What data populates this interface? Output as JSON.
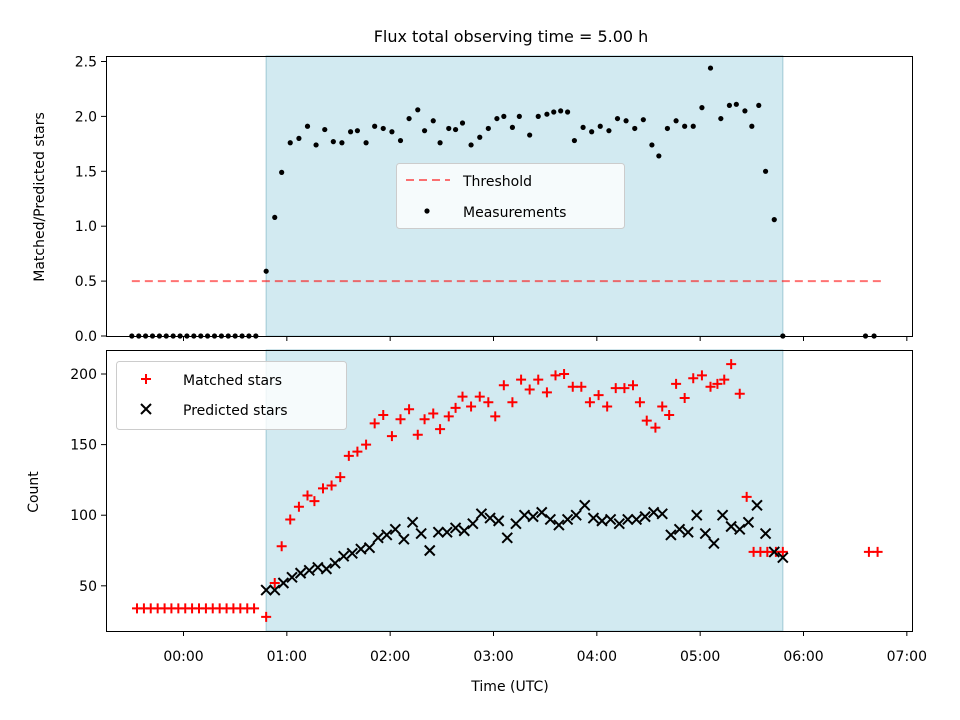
{
  "figure_title": "Flux total observing time = 5.00 h",
  "colors": {
    "observing_span": "#add8e6",
    "threshold": "#ff0000",
    "measurements": "#000000",
    "matched": "#ff0000",
    "predicted": "#000000"
  },
  "chart_data": [
    {
      "type": "scatter",
      "panel": "top",
      "ylabel": "Matched/Predicted stars",
      "xlim_hours": [
        -0.75,
        7.05
      ],
      "ylim": [
        0,
        2.55
      ],
      "yticks": [
        0.0,
        0.5,
        1.0,
        1.5,
        2.0,
        2.5
      ],
      "ytick_labels": [
        "0.0",
        "0.5",
        "1.0",
        "1.5",
        "2.0",
        "2.5"
      ],
      "observing_span_hours": [
        0.8,
        5.8
      ],
      "legend": {
        "position": "center",
        "entries": [
          "Threshold",
          "Measurements"
        ]
      },
      "threshold": {
        "name": "Threshold",
        "value": 0.5,
        "x_range_hours": [
          -0.5,
          6.75
        ]
      },
      "series": [
        {
          "name": "Measurements",
          "x_hours": [
            -0.5,
            -0.433,
            -0.367,
            -0.3,
            -0.233,
            -0.167,
            -0.1,
            -0.033,
            0.033,
            0.1,
            0.167,
            0.233,
            0.3,
            0.367,
            0.433,
            0.5,
            0.567,
            0.633,
            0.7,
            0.8,
            0.883,
            0.95,
            1.033,
            1.117,
            1.2,
            1.283,
            1.367,
            1.45,
            1.533,
            1.617,
            1.683,
            1.767,
            1.85,
            1.933,
            2.017,
            2.1,
            2.183,
            2.267,
            2.333,
            2.417,
            2.483,
            2.567,
            2.633,
            2.7,
            2.783,
            2.867,
            2.95,
            3.033,
            3.1,
            3.183,
            3.25,
            3.35,
            3.433,
            3.517,
            3.583,
            3.65,
            3.717,
            3.783,
            3.867,
            3.95,
            4.033,
            4.117,
            4.2,
            4.283,
            4.367,
            4.45,
            4.533,
            4.6,
            4.683,
            4.767,
            4.85,
            4.933,
            5.017,
            5.1,
            5.2,
            5.283,
            5.35,
            5.433,
            5.5,
            5.567,
            5.633,
            5.717,
            5.8,
            6.6,
            6.683
          ],
          "y": [
            0,
            0,
            0,
            0,
            0,
            0,
            0,
            0,
            0,
            0,
            0,
            0,
            0,
            0,
            0,
            0,
            0,
            0,
            0,
            0.59,
            1.08,
            1.49,
            1.76,
            1.8,
            1.91,
            1.74,
            1.88,
            1.77,
            1.76,
            1.86,
            1.87,
            1.76,
            1.91,
            1.89,
            1.86,
            1.78,
            1.98,
            2.06,
            1.87,
            1.96,
            1.76,
            1.89,
            1.88,
            1.94,
            1.74,
            1.81,
            1.89,
            1.98,
            2.0,
            1.9,
            2.0,
            1.83,
            2.0,
            2.02,
            2.04,
            2.05,
            2.04,
            1.78,
            1.9,
            1.86,
            1.91,
            1.87,
            1.98,
            1.96,
            1.89,
            1.97,
            1.74,
            1.64,
            1.89,
            1.96,
            1.91,
            1.91,
            2.08,
            2.44,
            1.98,
            2.1,
            2.11,
            2.05,
            1.91,
            2.1,
            1.5,
            1.06,
            0,
            0,
            0
          ]
        }
      ]
    },
    {
      "type": "scatter",
      "panel": "bottom",
      "xlabel": "Time (UTC)",
      "ylabel": "Count",
      "xlim_hours": [
        -0.75,
        7.05
      ],
      "ylim": [
        18,
        217
      ],
      "yticks": [
        50,
        100,
        150,
        200
      ],
      "ytick_labels": [
        "50",
        "100",
        "150",
        "200"
      ],
      "xticks_hours": [
        0,
        1,
        2,
        3,
        4,
        5,
        6,
        7
      ],
      "xtick_labels": [
        "00:00",
        "01:00",
        "02:00",
        "03:00",
        "04:00",
        "05:00",
        "06:00",
        "07:00"
      ],
      "observing_span_hours": [
        0.8,
        5.8
      ],
      "legend": {
        "position": "upper left",
        "entries": [
          "Matched stars",
          "Predicted stars"
        ]
      },
      "series": [
        {
          "name": "Matched stars",
          "marker": "+",
          "x_hours": [
            -0.45,
            -0.383,
            -0.317,
            -0.25,
            -0.183,
            -0.117,
            -0.05,
            0.017,
            0.083,
            0.15,
            0.217,
            0.283,
            0.35,
            0.417,
            0.483,
            0.55,
            0.617,
            0.683,
            0.8,
            0.883,
            0.95,
            1.033,
            1.117,
            1.2,
            1.267,
            1.35,
            1.433,
            1.517,
            1.6,
            1.683,
            1.767,
            1.85,
            1.933,
            2.017,
            2.1,
            2.183,
            2.267,
            2.333,
            2.417,
            2.483,
            2.567,
            2.633,
            2.7,
            2.783,
            2.867,
            2.95,
            3.017,
            3.1,
            3.183,
            3.267,
            3.35,
            3.433,
            3.517,
            3.6,
            3.683,
            3.767,
            3.85,
            3.933,
            4.017,
            4.1,
            4.183,
            4.267,
            4.35,
            4.417,
            4.483,
            4.567,
            4.633,
            4.7,
            4.767,
            4.85,
            4.933,
            5.017,
            5.1,
            5.167,
            5.233,
            5.3,
            5.383,
            5.45,
            5.517,
            5.583,
            5.65,
            5.733,
            5.8,
            6.633,
            6.717
          ],
          "y": [
            34,
            34,
            34,
            34,
            34,
            34,
            34,
            34,
            34,
            34,
            34,
            34,
            34,
            34,
            34,
            34,
            34,
            34,
            28,
            52,
            78,
            97,
            106,
            114,
            110,
            119,
            121,
            127,
            142,
            145,
            150,
            165,
            171,
            156,
            168,
            175,
            157,
            168,
            172,
            161,
            170,
            176,
            184,
            177,
            184,
            180,
            170,
            192,
            180,
            196,
            189,
            196,
            187,
            199,
            200,
            191,
            191,
            180,
            185,
            177,
            190,
            190,
            192,
            180,
            167,
            162,
            177,
            171,
            193,
            183,
            197,
            199,
            191,
            193,
            196,
            207,
            186,
            113,
            74,
            74,
            74,
            74,
            74,
            74,
            74
          ],
          "y_note": ""
        },
        {
          "name": "Predicted stars",
          "marker": "x",
          "x_hours": [
            0.8,
            0.883,
            0.967,
            1.05,
            1.133,
            1.217,
            1.3,
            1.383,
            1.467,
            1.55,
            1.633,
            1.717,
            1.8,
            1.883,
            1.967,
            2.05,
            2.133,
            2.217,
            2.3,
            2.383,
            2.467,
            2.55,
            2.633,
            2.717,
            2.8,
            2.883,
            2.967,
            3.05,
            3.133,
            3.217,
            3.3,
            3.383,
            3.467,
            3.55,
            3.633,
            3.717,
            3.8,
            3.883,
            3.967,
            4.05,
            4.133,
            4.217,
            4.3,
            4.383,
            4.467,
            4.55,
            4.633,
            4.717,
            4.8,
            4.883,
            4.967,
            5.05,
            5.133,
            5.217,
            5.3,
            5.383,
            5.467,
            5.55,
            5.633,
            5.717,
            5.8
          ],
          "y": [
            47,
            47,
            52,
            56,
            59,
            61,
            63,
            62,
            66,
            71,
            73,
            76,
            77,
            84,
            86,
            90,
            83,
            95,
            87,
            75,
            88,
            88,
            91,
            89,
            94,
            101,
            98,
            96,
            84,
            94,
            100,
            99,
            102,
            97,
            93,
            97,
            100,
            107,
            98,
            96,
            97,
            94,
            97,
            97,
            99,
            102,
            101,
            86,
            90,
            88,
            100,
            87,
            80,
            100,
            92,
            90,
            95,
            107,
            87,
            74,
            70
          ]
        }
      ]
    }
  ]
}
